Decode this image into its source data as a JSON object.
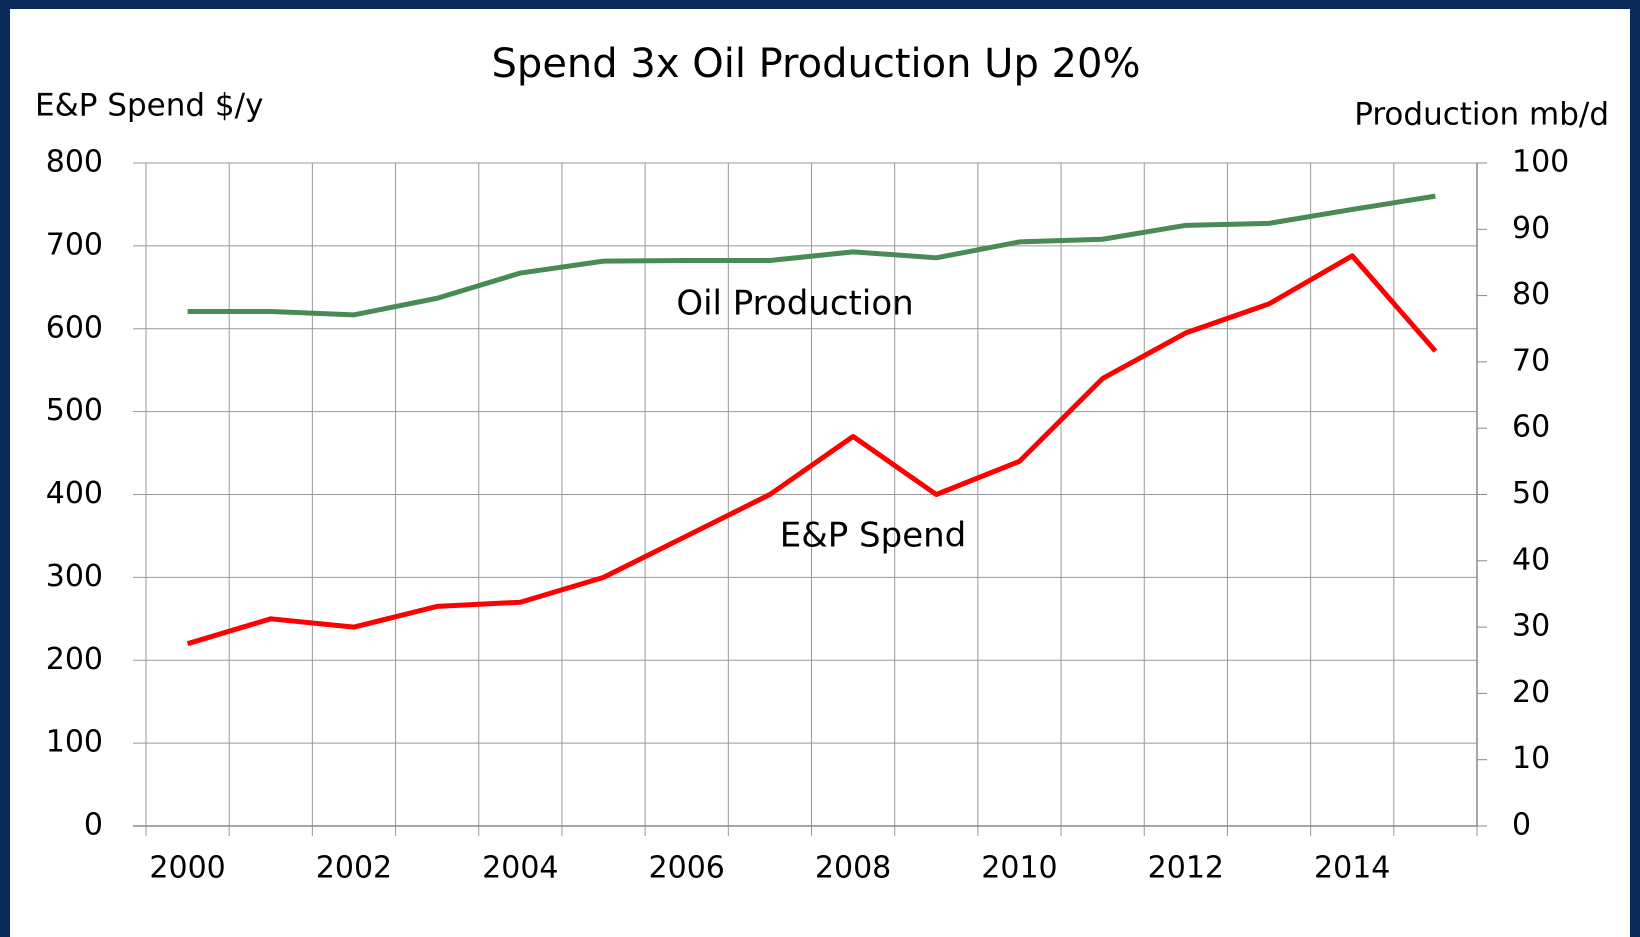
{
  "chart_data": {
    "type": "line",
    "title": "Spend 3x Oil Production Up 20%",
    "y_label": "E&P Spend $/y",
    "y2_label": "Production mb/d",
    "categories": [
      "2000",
      null,
      "2002",
      null,
      "2004",
      null,
      "2006",
      null,
      "2008",
      null,
      "2010",
      null,
      "2012",
      null,
      "2014",
      null
    ],
    "series": [
      {
        "name": "E&P Spend",
        "color": "#ff0000",
        "axis": "y",
        "values": [
          220,
          250,
          240,
          265,
          270,
          300,
          350,
          400,
          470,
          400,
          440,
          540,
          595,
          630,
          688,
          573
        ]
      },
      {
        "name": "Oil Production",
        "color": "#4a8a54",
        "axis": "y2",
        "values": [
          77.6,
          77.6,
          77.1,
          79.6,
          83.4,
          85.2,
          85.3,
          85.3,
          86.6,
          85.7,
          88.1,
          88.5,
          90.6,
          90.9,
          93.0,
          95.0
        ]
      }
    ],
    "ylim": [
      0,
      800
    ],
    "yticks": [
      0,
      100,
      200,
      300,
      400,
      500,
      600,
      700,
      800
    ],
    "y2lim": [
      0,
      100
    ],
    "y2ticks": [
      0,
      10,
      20,
      30,
      40,
      50,
      60,
      70,
      80,
      90,
      100
    ],
    "grid": true
  }
}
